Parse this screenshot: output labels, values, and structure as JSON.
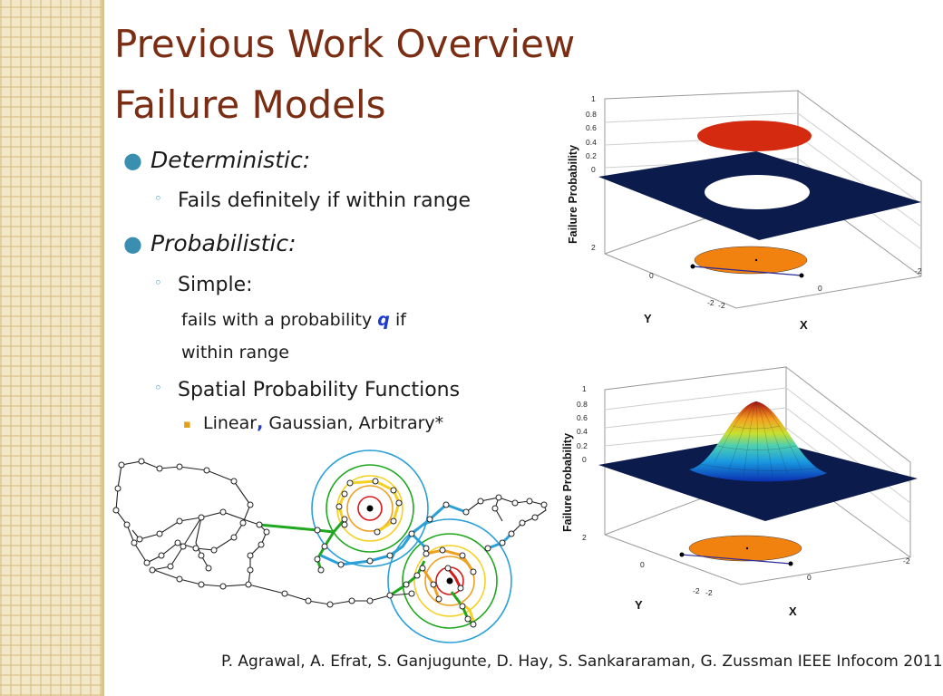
{
  "title_line1": "Previous Work Overview",
  "title_line2": "Failure Models",
  "bullets": {
    "deterministic": "Deterministic:",
    "deterministic_sub": "Fails definitely if within range",
    "probabilistic": "Probabilistic:",
    "simple": "Simple:",
    "simple_desc_a": "fails with a probability",
    "simple_desc_q": "q",
    "simple_desc_b": "if",
    "simple_desc_c": "within range",
    "spatial": "Spatial Probability  Functions",
    "spatial_sub_a": "Linear",
    "spatial_sub_comma": ",",
    "spatial_sub_b": " Gaussian, Arbitrary*"
  },
  "plot_top": {
    "zlabel": "Failure Probability",
    "zticks": [
      "1",
      "0.8",
      "0.6",
      "0.4",
      "0.2",
      "0"
    ],
    "ylabel": "Y",
    "xlabel": "X",
    "y_ticks": [
      "2",
      "0",
      "-2"
    ],
    "x_ticks": [
      "-2",
      "0",
      "-2"
    ],
    "colors": {
      "disk": "#d42a10",
      "plane": "#0b1b4b",
      "base": "#f2820f"
    }
  },
  "plot_bottom": {
    "zlabel": "Failure Probability",
    "zticks": [
      "1",
      "0.8",
      "0.6",
      "0.4",
      "0.2",
      "0"
    ],
    "ylabel": "Y",
    "xlabel": "X",
    "y_ticks": [
      "2",
      "0",
      "-2"
    ],
    "x_ticks": [
      "-2",
      "0",
      "-2"
    ],
    "colors": {
      "plane": "#0b1b4b",
      "base": "#f2820f"
    }
  },
  "network_map": {
    "ring_colors": [
      "#d61a1a",
      "#f0a020",
      "#f5d020",
      "#1fa81f",
      "#2aa0d8"
    ]
  },
  "citation": "P. Agrawal, A. Efrat, S. Ganjugunte, D. Hay, S. Sankararaman, G. Zussman  IEEE Infocom 2011"
}
